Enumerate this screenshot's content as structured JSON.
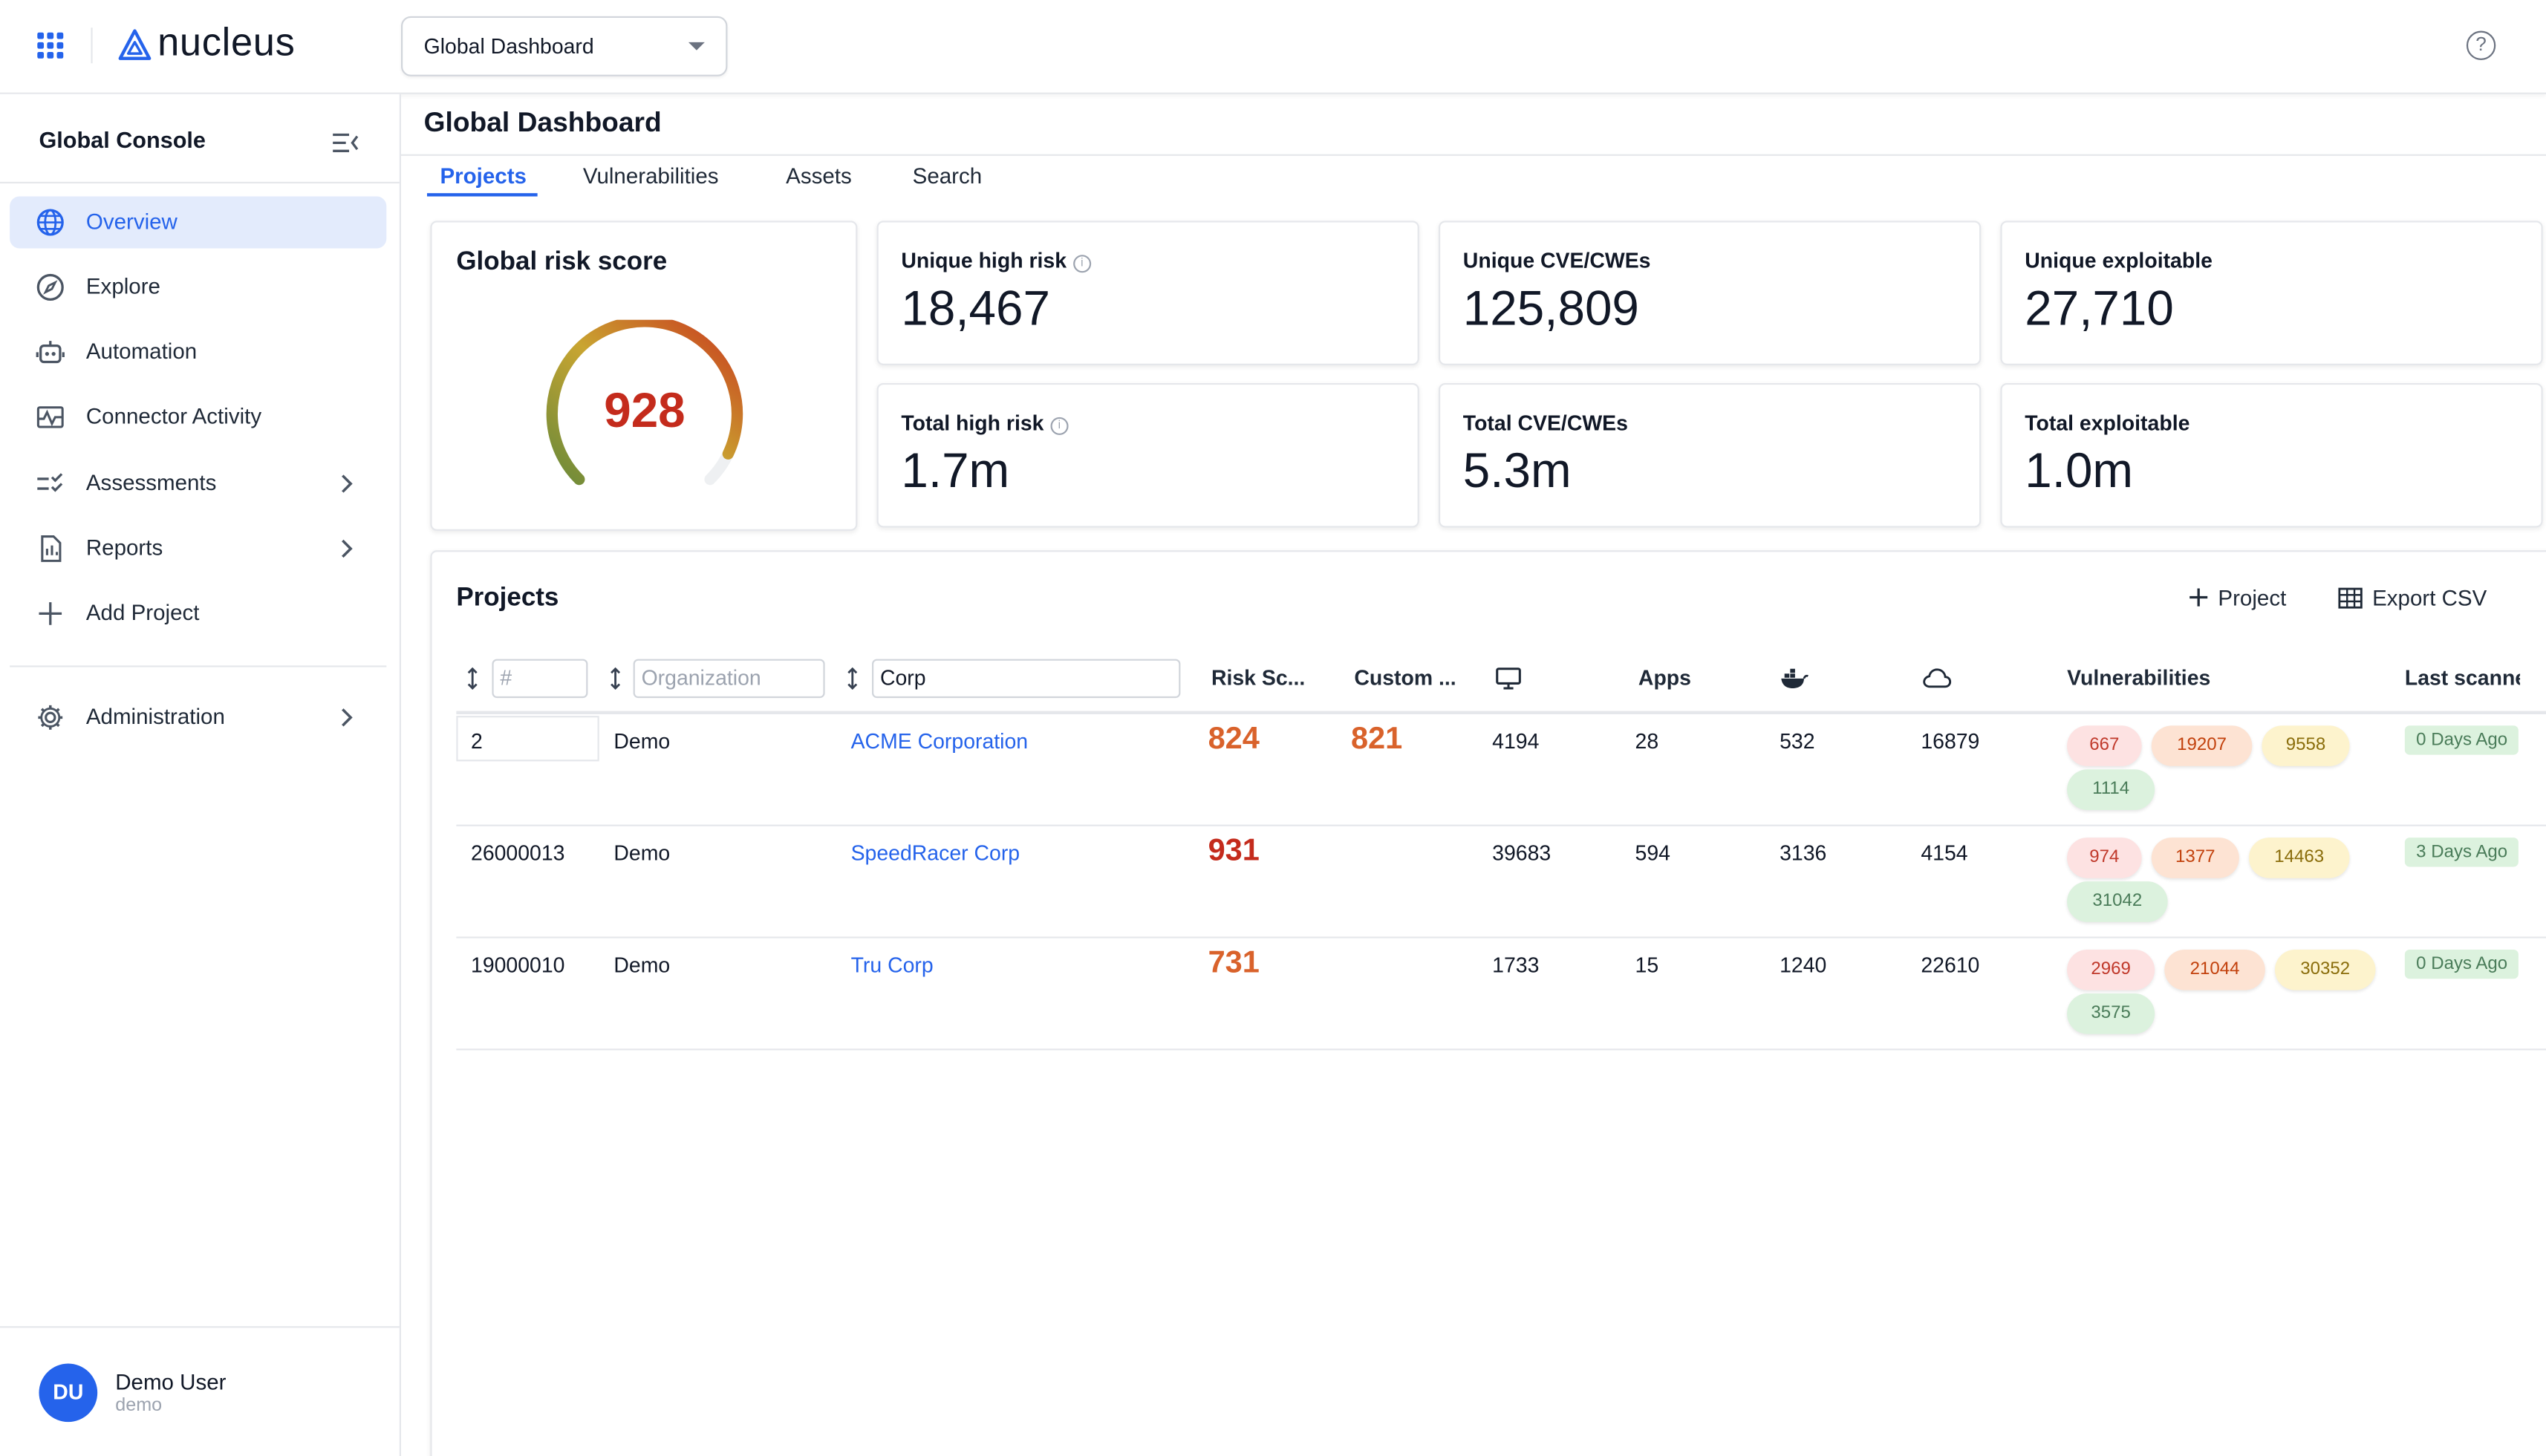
{
  "header": {
    "logo_text": "nucleus",
    "dashboard_select": "Global Dashboard",
    "help_icon": "?"
  },
  "sidebar": {
    "title": "Global Console",
    "items": [
      {
        "label": "Overview",
        "icon": "globe-icon",
        "active": true
      },
      {
        "label": "Explore",
        "icon": "compass-icon"
      },
      {
        "label": "Automation",
        "icon": "robot-icon"
      },
      {
        "label": "Connector Activity",
        "icon": "activity-icon"
      },
      {
        "label": "Assessments",
        "icon": "checklist-icon",
        "chevron": true
      },
      {
        "label": "Reports",
        "icon": "report-icon",
        "chevron": true
      },
      {
        "label": "Add Project",
        "icon": "plus-icon"
      },
      {
        "label": "Administration",
        "icon": "gear-icon",
        "chevron": true
      }
    ],
    "user": {
      "initials": "DU",
      "name": "Demo User",
      "sub": "demo"
    }
  },
  "main": {
    "title": "Global Dashboard",
    "tabs": [
      "Projects",
      "Vulnerabilities",
      "Assets",
      "Search"
    ],
    "active_tab": "Projects"
  },
  "risk": {
    "title": "Global risk score",
    "value": "928",
    "fraction": 0.928,
    "color": "#c42b1c"
  },
  "stats": [
    {
      "label": "Unique high risk",
      "value": "18,467",
      "info": true
    },
    {
      "label": "Unique CVE/CWEs",
      "value": "125,809"
    },
    {
      "label": "Unique exploitable",
      "value": "27,710"
    },
    {
      "label": "Total high risk",
      "value": "1.7m",
      "info": true
    },
    {
      "label": "Total CVE/CWEs",
      "value": "5.3m"
    },
    {
      "label": "Total exploitable",
      "value": "1.0m"
    }
  ],
  "projects": {
    "title": "Projects",
    "add_label": "Project",
    "export_label": "Export CSV",
    "filters": {
      "id_placeholder": "#",
      "org_placeholder": "Organization",
      "name_value": "Corp"
    },
    "columns": [
      "Risk Sc...",
      "Custom ...",
      "Apps",
      "Vulnerabilities",
      "Last scanned"
    ],
    "column_icons": [
      "monitor-icon",
      "docker-icon",
      "cloud-icon"
    ],
    "rows": [
      {
        "id": "2",
        "org": "Demo",
        "name": "ACME Corporation",
        "risk": "824",
        "risk_color": "#d9622b",
        "custom": "821",
        "custom_color": "#d9622b",
        "hosts": "4194",
        "apps": "28",
        "containers": "532",
        "cloud": "16879",
        "vulns": [
          "667",
          "19207",
          "9558",
          "1114"
        ],
        "last_scan": "0 Days Ago"
      },
      {
        "id": "26000013",
        "org": "Demo",
        "name": "SpeedRacer Corp",
        "risk": "931",
        "risk_color": "#c42b1c",
        "custom": "",
        "custom_color": "#d9622b",
        "hosts": "39683",
        "apps": "594",
        "containers": "3136",
        "cloud": "4154",
        "vulns": [
          "974",
          "1377",
          "14463",
          "31042"
        ],
        "last_scan": "3 Days Ago"
      },
      {
        "id": "19000010",
        "org": "Demo",
        "name": "Tru Corp",
        "risk": "731",
        "risk_color": "#d9622b",
        "custom": "",
        "custom_color": "#d9622b",
        "hosts": "1733",
        "apps": "15",
        "containers": "1240",
        "cloud": "22610",
        "vulns": [
          "2969",
          "21044",
          "30352",
          "3575"
        ],
        "last_scan": "0 Days Ago"
      }
    ]
  }
}
